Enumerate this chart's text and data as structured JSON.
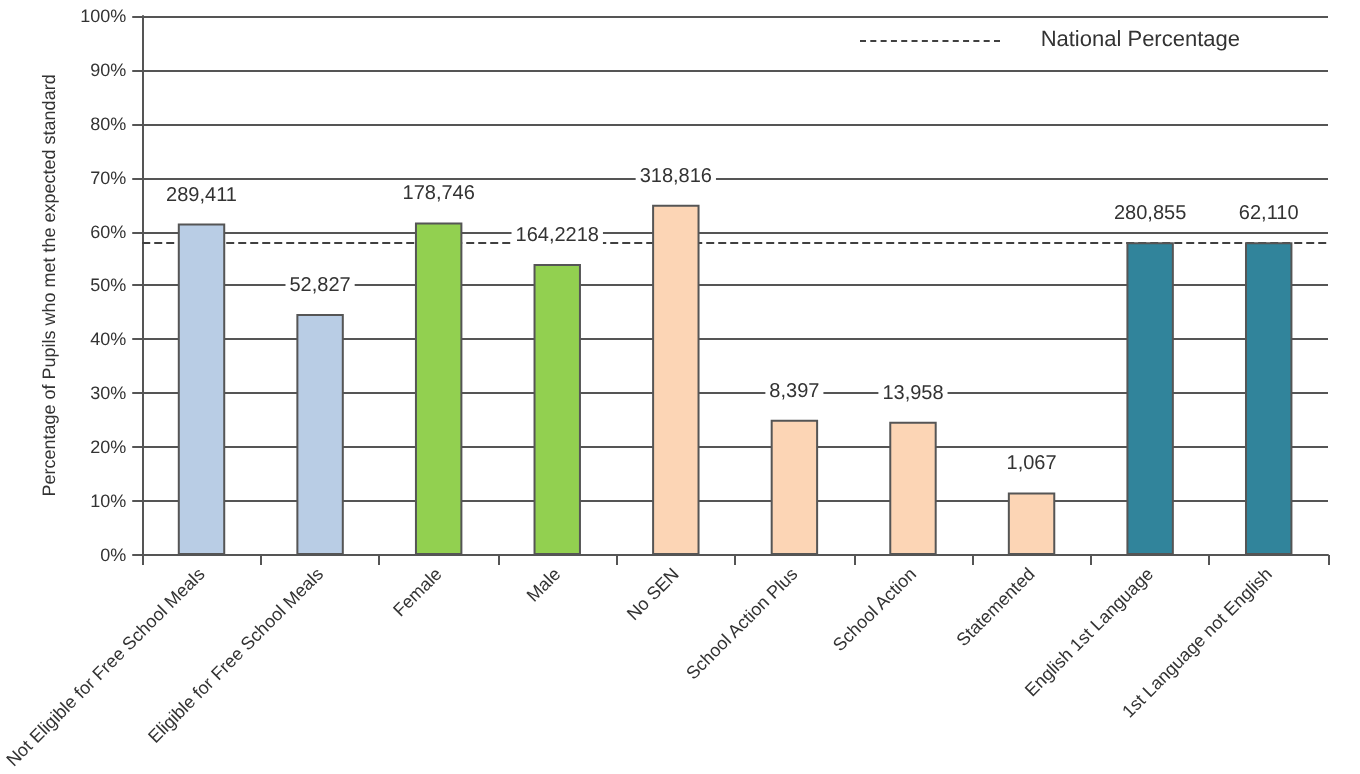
{
  "chart_data": {
    "type": "bar",
    "ylabel": "Percentage of Pupils who met the expected standard",
    "categories": [
      "Not Eligible for Free School Meals",
      "Eligible for Free School Meals",
      "Female",
      "Male",
      "No SEN",
      "School Action Plus",
      "School Action",
      "Statemented",
      "English 1st Language",
      "1st Language not English"
    ],
    "values": [
      61.5,
      44.7,
      61.7,
      54,
      65,
      25.1,
      24.7,
      11.6,
      58,
      58
    ],
    "colors": [
      "#b9cde5",
      "#b9cde5",
      "#92d050",
      "#92d050",
      "#fcd5b5",
      "#fcd5b5",
      "#fcd5b5",
      "#fcd5b5",
      "#31849b",
      "#31849b"
    ],
    "annotations": [
      {
        "text": "289,411",
        "x": "Not Eligible for Free School Meals",
        "y": 61.5
      },
      {
        "text": "52,827",
        "x": "Eligible for Free School Meals",
        "y": 44.7
      },
      {
        "text": "178,746",
        "x": "Female",
        "y": 61.7
      },
      {
        "text": "164,2218",
        "x": "Male",
        "y": 54
      },
      {
        "text": "318,816",
        "x": "No SEN",
        "y": 65
      },
      {
        "text": "8,397",
        "x": "School Action Plus",
        "y": 25.1
      },
      {
        "text": "13,958",
        "x": "School Action",
        "y": 24.7
      },
      {
        "text": "1,067",
        "x": "Statemented",
        "y": 11.6
      },
      {
        "text": "280,855",
        "x": "English 1st Language",
        "y": 58
      },
      {
        "text": "62,110",
        "x": "1st Language not English",
        "y": 58
      }
    ],
    "ylim": [
      0,
      100
    ],
    "yticks": [
      {
        "value": 0,
        "label": "0%"
      },
      {
        "value": 10,
        "label": "10%"
      },
      {
        "value": 20,
        "label": "20%"
      },
      {
        "value": 30,
        "label": "30%"
      },
      {
        "value": 40,
        "label": "40%"
      },
      {
        "value": 50,
        "label": "50%"
      },
      {
        "value": 60,
        "label": "60%"
      },
      {
        "value": 70,
        "label": "70%"
      },
      {
        "value": 80,
        "label": "80%"
      },
      {
        "value": 90,
        "label": "90%"
      },
      {
        "value": 100,
        "label": "100%"
      }
    ],
    "ref_lines": [
      {
        "axis": "y",
        "value": 58,
        "label": "National Percentage",
        "color": "#404040",
        "line_style": "dashed"
      }
    ],
    "grid": "y"
  }
}
